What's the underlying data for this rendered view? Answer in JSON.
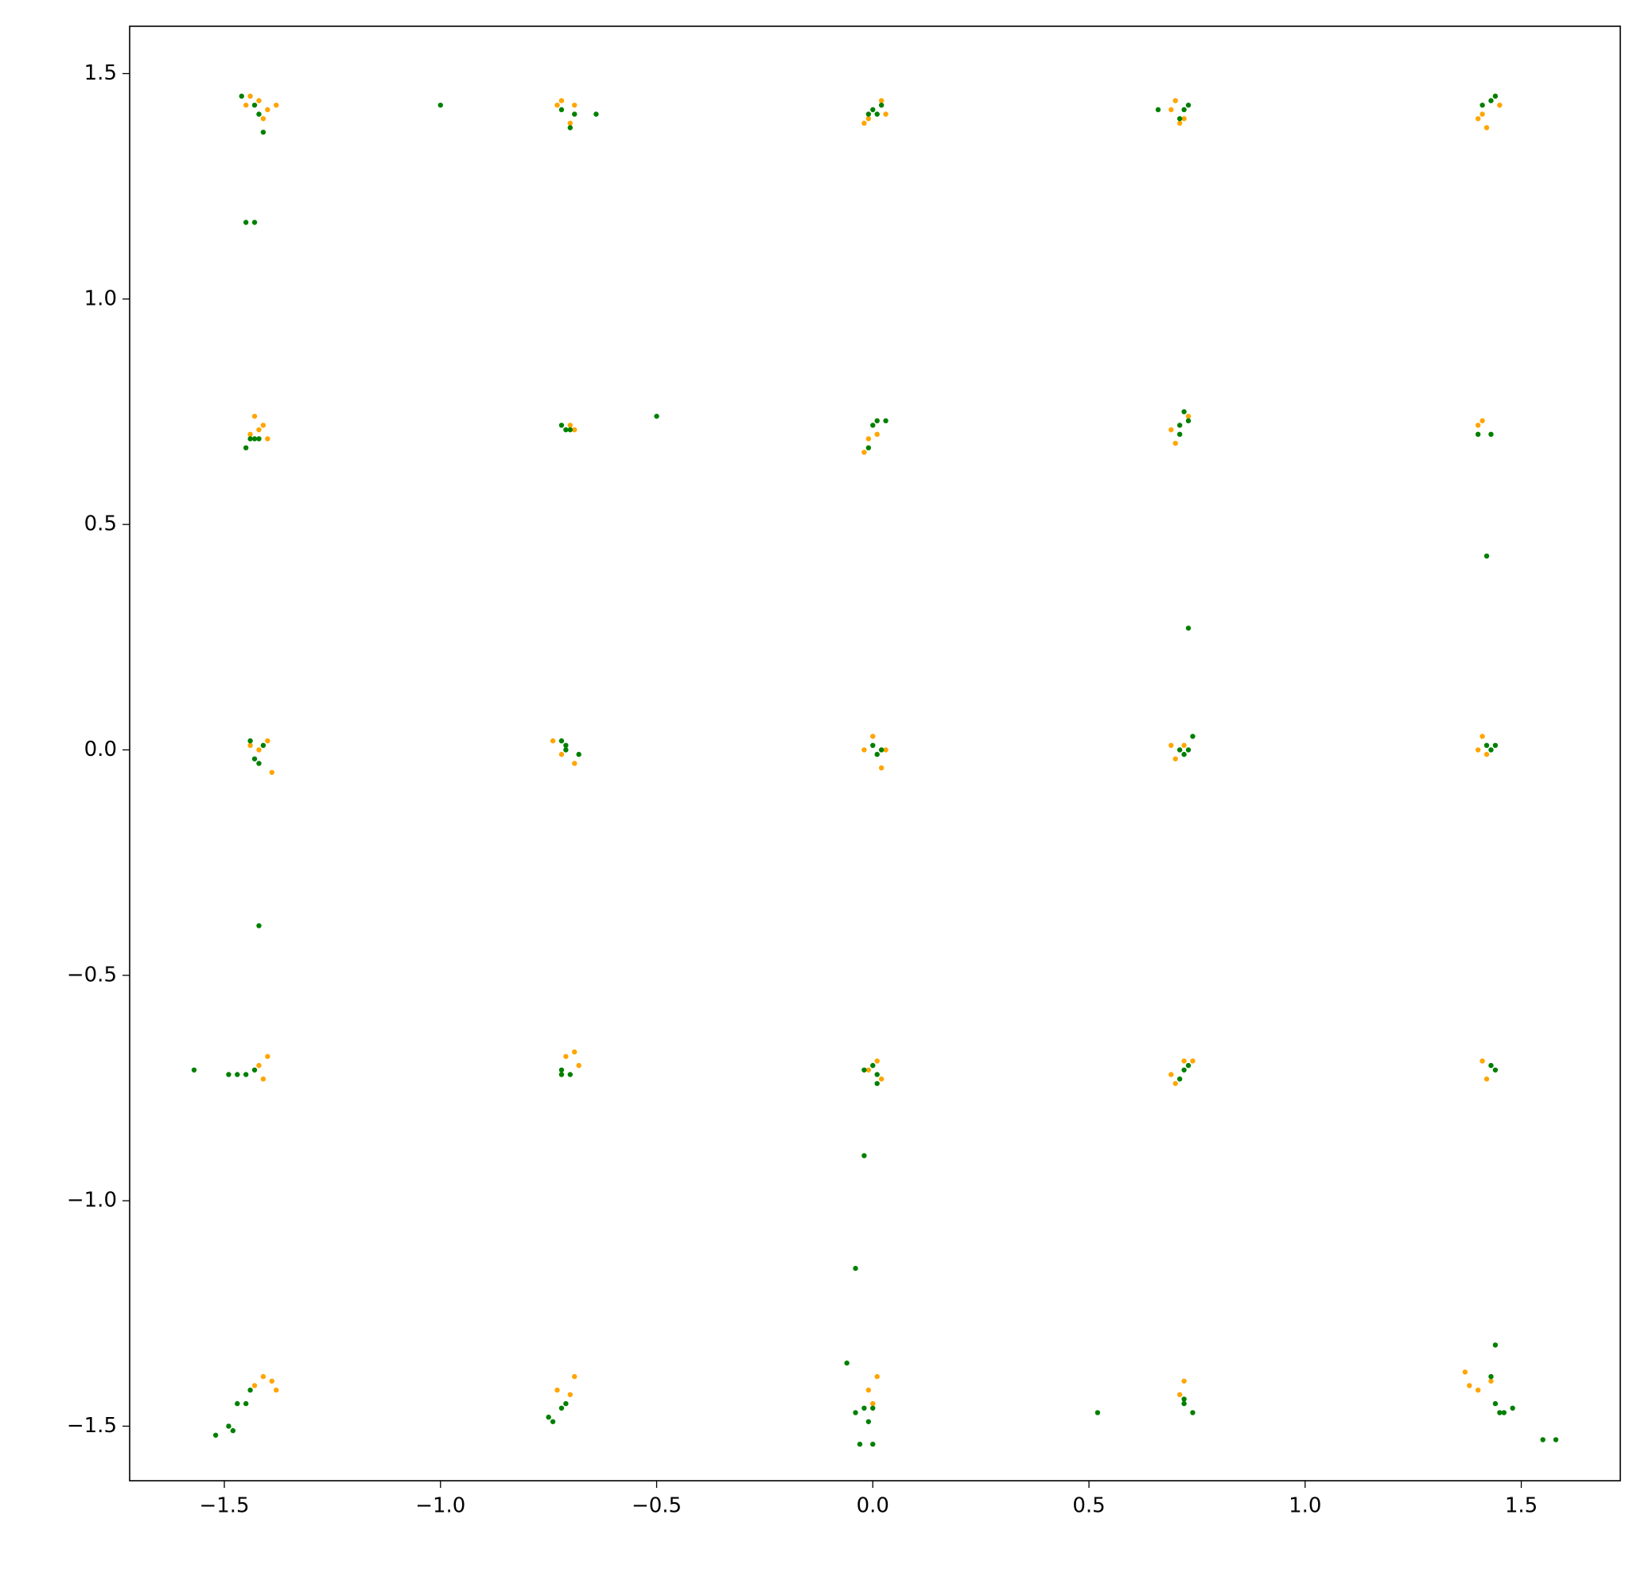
{
  "chart_data": {
    "type": "scatter",
    "xlim": [
      -1.719,
      1.729
    ],
    "ylim": [
      -1.621,
      1.605
    ],
    "xticks": [
      {
        "value": -1.5,
        "label": "−1.5"
      },
      {
        "value": -1,
        "label": "−1.0"
      },
      {
        "value": -0.5,
        "label": "−0.5"
      },
      {
        "value": 0,
        "label": "0.0"
      },
      {
        "value": 0.5,
        "label": "0.5"
      },
      {
        "value": 1,
        "label": "1.0"
      },
      {
        "value": 1.5,
        "label": "1.5"
      }
    ],
    "yticks": [
      {
        "value": -1.5,
        "label": "−1.5"
      },
      {
        "value": -1,
        "label": "−1.0"
      },
      {
        "value": -0.5,
        "label": "−0.5"
      },
      {
        "value": 0,
        "label": "0.0"
      },
      {
        "value": 0.5,
        "label": "0.5"
      },
      {
        "value": 1,
        "label": "1.0"
      },
      {
        "value": 1.5,
        "label": "1.5"
      }
    ],
    "grid": false,
    "series": [
      {
        "color": "#ffa500",
        "x": [
          -1.44,
          -1.42,
          -1.4,
          -1.38,
          -1.41,
          -1.45,
          -0.72,
          -0.69,
          -0.7,
          -0.73,
          0.02,
          -0.01,
          0.03,
          -0.02,
          0.7,
          0.72,
          0.69,
          0.71,
          1.4,
          1.42,
          1.45,
          1.41,
          1.44,
          -1.43,
          -1.41,
          -1.4,
          -1.44,
          -1.42,
          -0.7,
          -0.69,
          -0.02,
          -0.01,
          0.01,
          0.7,
          0.69,
          0.73,
          1.4,
          1.41,
          -1.4,
          -1.39,
          -1.42,
          -1.44,
          -0.74,
          -0.72,
          -0.69,
          0.0,
          0.02,
          -0.02,
          0.03,
          0.69,
          0.7,
          0.72,
          1.41,
          1.4,
          1.42,
          -1.4,
          -1.42,
          -1.41,
          -0.71,
          -0.68,
          -0.69,
          -0.72,
          0.01,
          -0.01,
          0.02,
          0.7,
          0.72,
          0.74,
          0.69,
          1.41,
          1.42,
          -1.41,
          -1.39,
          -1.38,
          -1.43,
          -0.73,
          -0.69,
          -0.7,
          0.01,
          -0.01,
          0.0,
          0.72,
          0.71,
          1.37,
          1.4,
          1.43,
          1.38
        ],
        "y": [
          1.45,
          1.44,
          1.42,
          1.43,
          1.4,
          1.43,
          1.44,
          1.43,
          1.39,
          1.43,
          1.44,
          1.4,
          1.41,
          1.39,
          1.44,
          1.4,
          1.42,
          1.39,
          1.4,
          1.38,
          1.43,
          1.41,
          1.45,
          0.74,
          0.72,
          0.69,
          0.7,
          0.71,
          0.72,
          0.71,
          0.66,
          0.69,
          0.7,
          0.68,
          0.71,
          0.74,
          0.72,
          0.73,
          0.02,
          -0.05,
          0.0,
          0.01,
          0.02,
          -0.01,
          -0.03,
          0.03,
          -0.04,
          0.0,
          0.0,
          0.01,
          -0.02,
          0.01,
          0.03,
          0.0,
          -0.01,
          -0.68,
          -0.7,
          -0.73,
          -0.68,
          -0.7,
          -0.67,
          -0.72,
          -0.69,
          -0.71,
          -0.73,
          -0.74,
          -0.69,
          -0.69,
          -0.72,
          -0.69,
          -0.73,
          -1.39,
          -1.4,
          -1.42,
          -1.41,
          -1.42,
          -1.39,
          -1.43,
          -1.39,
          -1.42,
          -1.45,
          -1.4,
          -1.43,
          -1.38,
          -1.42,
          -1.4,
          -1.41
        ]
      },
      {
        "color": "#008000",
        "x": [
          -1.46,
          -1.43,
          -1.42,
          -1.41,
          -1.0,
          -1.45,
          -1.43,
          -0.72,
          -0.7,
          -0.64,
          -0.69,
          0.0,
          0.01,
          0.02,
          -0.01,
          0.66,
          0.72,
          0.73,
          0.71,
          1.41,
          1.43,
          1.44,
          -1.45,
          -1.43,
          -1.44,
          -1.42,
          -0.72,
          -0.71,
          -0.7,
          -0.5,
          0.0,
          0.01,
          0.03,
          -0.01,
          0.71,
          0.72,
          0.73,
          0.71,
          1.4,
          1.43,
          1.42,
          0.73,
          -1.44,
          -1.43,
          -1.42,
          -1.41,
          -1.42,
          -0.71,
          -0.72,
          -0.68,
          -0.71,
          0.0,
          0.01,
          0.02,
          0.72,
          0.73,
          0.74,
          0.71,
          1.42,
          1.43,
          1.44,
          -1.57,
          -1.49,
          -1.47,
          -1.45,
          -1.43,
          -0.72,
          -0.7,
          -0.72,
          0.0,
          0.01,
          -0.02,
          0.01,
          0.72,
          0.71,
          0.73,
          1.43,
          1.44,
          -0.02,
          -0.04,
          -1.52,
          -1.49,
          -1.48,
          -1.47,
          -1.45,
          -1.44,
          -0.75,
          -0.74,
          -0.72,
          -0.71,
          -0.06,
          -0.04,
          -0.02,
          0.0,
          -0.01,
          -0.03,
          0.0,
          0.52,
          0.72,
          0.74,
          0.72,
          1.44,
          1.43,
          1.44,
          1.46,
          1.48,
          1.55,
          1.58,
          1.45
        ],
        "y": [
          1.45,
          1.43,
          1.41,
          1.37,
          1.43,
          1.17,
          1.17,
          1.42,
          1.38,
          1.41,
          1.41,
          1.42,
          1.41,
          1.43,
          1.41,
          1.42,
          1.42,
          1.43,
          1.4,
          1.43,
          1.44,
          1.45,
          0.67,
          0.69,
          0.69,
          0.69,
          0.72,
          0.71,
          0.71,
          0.74,
          0.72,
          0.73,
          0.73,
          0.67,
          0.72,
          0.75,
          0.73,
          0.7,
          0.7,
          0.7,
          0.43,
          0.27,
          0.02,
          -0.02,
          -0.03,
          0.01,
          -0.39,
          0.01,
          0.02,
          -0.01,
          0.0,
          0.01,
          -0.01,
          0.0,
          -0.01,
          0.0,
          0.03,
          0.0,
          0.01,
          0.0,
          0.01,
          -0.71,
          -0.72,
          -0.72,
          -0.72,
          -0.71,
          -0.72,
          -0.72,
          -0.71,
          -0.7,
          -0.72,
          -0.71,
          -0.74,
          -0.71,
          -0.73,
          -0.7,
          -0.7,
          -0.71,
          -0.9,
          -1.15,
          -1.52,
          -1.5,
          -1.51,
          -1.45,
          -1.45,
          -1.42,
          -1.48,
          -1.49,
          -1.46,
          -1.45,
          -1.36,
          -1.47,
          -1.46,
          -1.46,
          -1.49,
          -1.54,
          -1.54,
          -1.47,
          -1.45,
          -1.47,
          -1.44,
          -1.32,
          -1.39,
          -1.45,
          -1.47,
          -1.46,
          -1.53,
          -1.53,
          -1.47
        ]
      }
    ]
  }
}
